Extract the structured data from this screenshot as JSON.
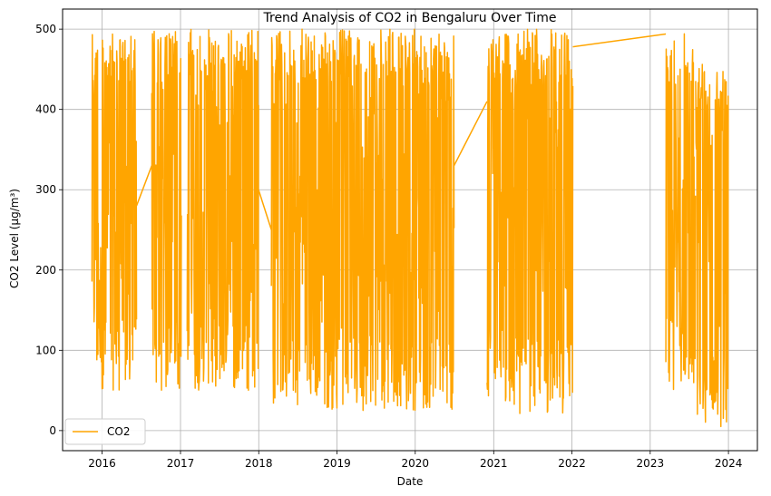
{
  "chart_data": {
    "type": "line",
    "title": "Trend Analysis of CO2 in Bengaluru Over Time",
    "xlabel": "Date",
    "ylabel": "CO2 Level (µg/m³)",
    "xlim": [
      "2015-07-01",
      "2024-05-15"
    ],
    "ylim": [
      -25,
      525
    ],
    "x_ticks": [
      "2016",
      "2017",
      "2018",
      "2019",
      "2020",
      "2021",
      "2022",
      "2023",
      "2024"
    ],
    "y_ticks": [
      0,
      100,
      200,
      300,
      400,
      500
    ],
    "grid": true,
    "legend": {
      "position": "lower-left"
    },
    "series": [
      {
        "name": "CO2",
        "color": "#FFA500",
        "segments": [
          {
            "start": "2015-11-15",
            "end": "2016-06-10",
            "min": 50,
            "max": 495
          },
          {
            "start": "2016-08-20",
            "end": "2017-01-05",
            "min": 50,
            "max": 500
          },
          {
            "start": "2017-02-01",
            "end": "2017-12-31",
            "min": 50,
            "max": 500
          },
          {
            "start": "2018-03-01",
            "end": "2020-06-30",
            "min": 25,
            "max": 500
          },
          {
            "start": "2020-12-01",
            "end": "2022-01-05",
            "min": 20,
            "max": 500
          },
          {
            "start": "2023-03-15",
            "end": "2023-07-31",
            "min": 50,
            "max": 500
          },
          {
            "start": "2023-08-01",
            "end": "2023-12-31",
            "min": 3,
            "max": 465
          }
        ],
        "connectors": [
          {
            "from": {
              "x": "2016-06-10",
              "y": 280
            },
            "to": {
              "x": "2016-08-20",
              "y": 330
            }
          },
          {
            "from": {
              "x": "2017-12-31",
              "y": 300
            },
            "to": {
              "x": "2018-03-01",
              "y": 250
            }
          },
          {
            "from": {
              "x": "2020-06-30",
              "y": 330
            },
            "to": {
              "x": "2020-12-01",
              "y": 410
            }
          },
          {
            "from": {
              "x": "2022-01-05",
              "y": 478
            },
            "to": {
              "x": "2023-03-15",
              "y": 494
            }
          }
        ]
      }
    ]
  }
}
